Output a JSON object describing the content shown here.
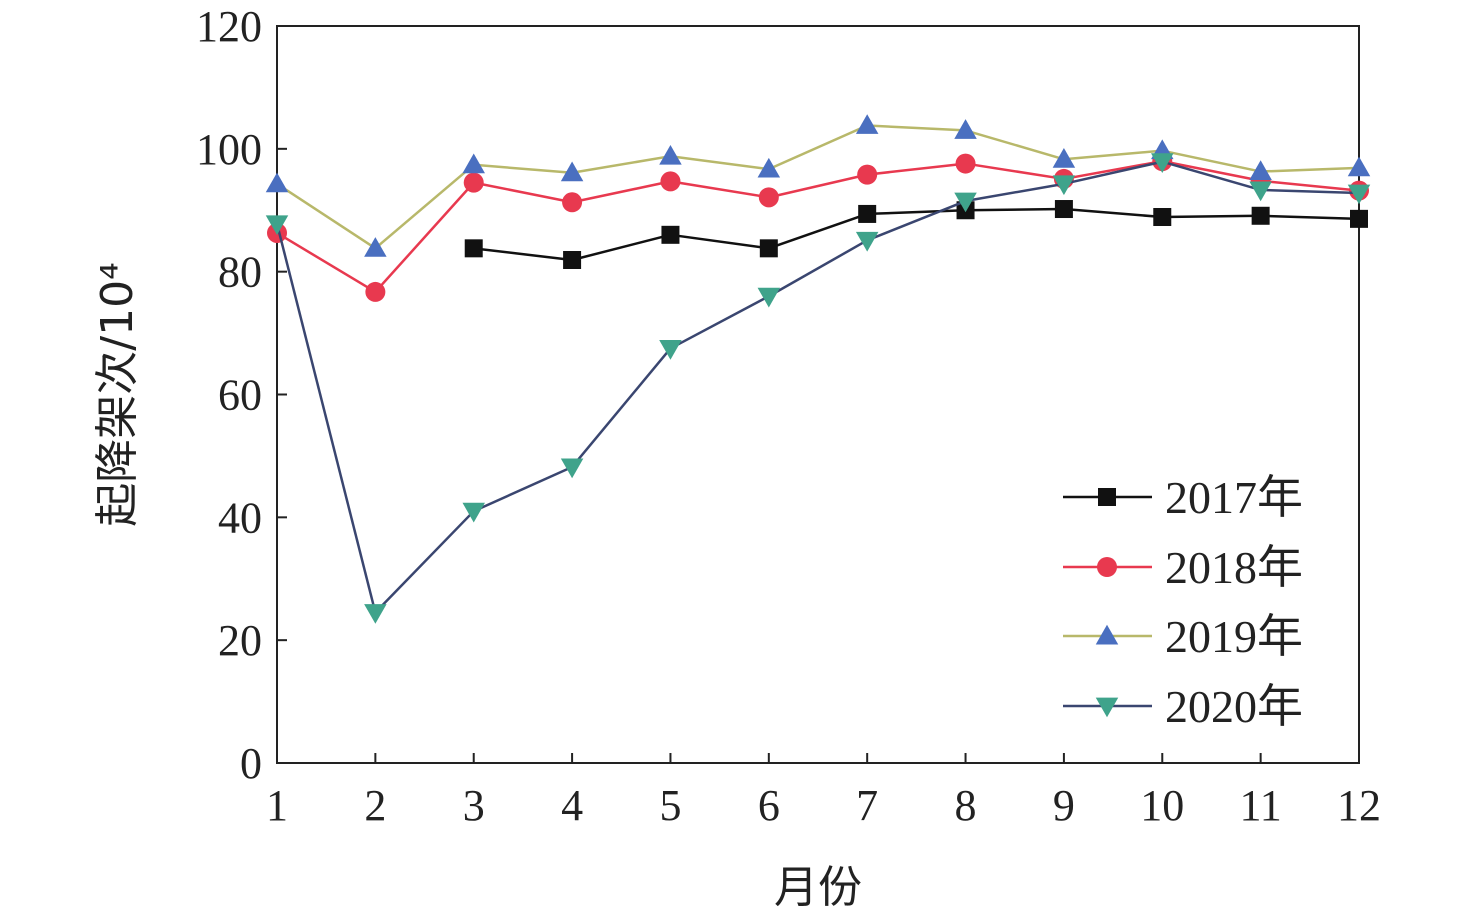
{
  "chart_data": {
    "type": "line",
    "x": [
      1,
      2,
      3,
      4,
      5,
      6,
      7,
      8,
      9,
      10,
      11,
      12
    ],
    "xlim": [
      1,
      12
    ],
    "ylim": [
      0,
      120
    ],
    "xticks": [
      "1",
      "2",
      "3",
      "4",
      "5",
      "6",
      "7",
      "8",
      "9",
      "10",
      "11",
      "12"
    ],
    "yticks": [
      "0",
      "20",
      "40",
      "60",
      "80",
      "100",
      "120"
    ],
    "xlabel": "月份",
    "ylabel": "起降架次/10⁴",
    "grid": false,
    "legend_position": "bottom-right",
    "series": [
      {
        "name": "2017年",
        "marker": "square",
        "color": "#111111",
        "line_color": "#111111",
        "values": [
          null,
          null,
          83.8,
          81.9,
          86.0,
          83.8,
          89.4,
          90.0,
          90.2,
          88.9,
          89.1,
          88.6
        ]
      },
      {
        "name": "2018年",
        "marker": "circle",
        "color": "#e8394f",
        "line_color": "#e8394f",
        "values": [
          86.3,
          76.7,
          94.5,
          91.3,
          94.7,
          92.1,
          95.8,
          97.6,
          95.1,
          98.0,
          94.8,
          93.2
        ]
      },
      {
        "name": "2019年",
        "marker": "triangle-up",
        "color": "#4a6fc0",
        "line_color": "#b8b86a",
        "values": [
          94.3,
          83.8,
          97.4,
          96.1,
          98.8,
          96.7,
          103.8,
          103.0,
          98.3,
          99.7,
          96.3,
          96.9
        ]
      },
      {
        "name": "2020年",
        "marker": "triangle-down",
        "color": "#3fa38b",
        "line_color": "#3a4670",
        "values": [
          87.8,
          24.5,
          41.0,
          48.2,
          67.5,
          76.0,
          85.1,
          91.5,
          94.3,
          97.9,
          93.3,
          92.8
        ]
      }
    ]
  }
}
